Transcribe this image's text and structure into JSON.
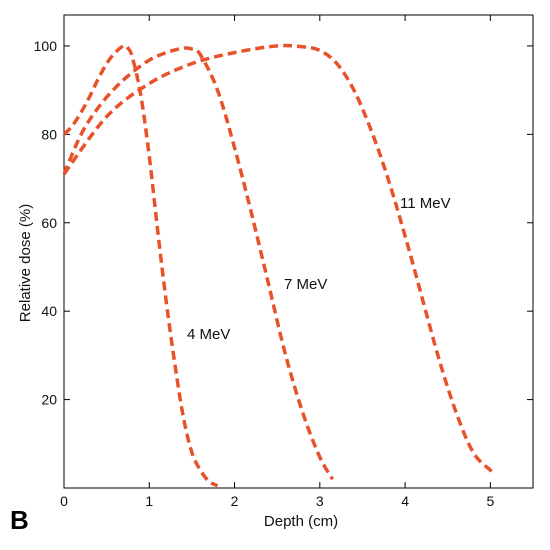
{
  "panel_letter": "B",
  "chart_data": {
    "type": "line",
    "xlabel": "Depth (cm)",
    "ylabel": "Relative dose (%)",
    "xlim": [
      0,
      5.5
    ],
    "ylim": [
      0,
      107
    ],
    "xticks": [
      0,
      1,
      2,
      3,
      4,
      5
    ],
    "yticks": [
      20,
      40,
      60,
      80,
      100
    ],
    "grid": false,
    "line_style": "dashed",
    "line_color": "#e8522a",
    "series": [
      {
        "name": "4 MeV",
        "x": [
          0.0,
          0.1,
          0.2,
          0.3,
          0.4,
          0.5,
          0.6,
          0.7,
          0.75,
          0.8,
          0.9,
          1.0,
          1.1,
          1.2,
          1.3,
          1.4,
          1.5,
          1.6,
          1.7,
          1.8
        ],
        "y": [
          80.0,
          82.0,
          85.0,
          88.5,
          92.5,
          96.0,
          98.5,
          100.0,
          99.5,
          97.5,
          89.0,
          75.0,
          58.0,
          42.0,
          28.0,
          16.0,
          8.0,
          4.0,
          1.5,
          0.5
        ]
      },
      {
        "name": "7 MeV",
        "x": [
          0.0,
          0.2,
          0.4,
          0.6,
          0.8,
          1.0,
          1.2,
          1.4,
          1.5,
          1.6,
          1.8,
          2.0,
          2.2,
          2.4,
          2.6,
          2.8,
          3.0,
          3.15
        ],
        "y": [
          71.0,
          80.0,
          86.0,
          90.5,
          94.0,
          96.8,
          98.5,
          99.5,
          99.3,
          98.0,
          90.0,
          77.0,
          62.0,
          46.0,
          30.0,
          17.0,
          7.0,
          2.0
        ]
      },
      {
        "name": "11 MeV",
        "x": [
          0.0,
          0.5,
          1.0,
          1.5,
          2.0,
          2.5,
          2.8,
          3.0,
          3.2,
          3.4,
          3.6,
          3.8,
          4.0,
          4.2,
          4.4,
          4.6,
          4.8,
          5.0,
          5.05
        ],
        "y": [
          71.0,
          84.0,
          91.5,
          96.0,
          98.5,
          100.0,
          99.8,
          99.0,
          96.0,
          90.0,
          81.0,
          70.0,
          57.0,
          43.0,
          29.0,
          17.0,
          8.0,
          4.0,
          3.0
        ]
      }
    ],
    "annotations": [
      {
        "text": "4 MeV",
        "series": "4 MeV"
      },
      {
        "text": "7 MeV",
        "series": "7 MeV"
      },
      {
        "text": "11 MeV",
        "series": "11 MeV"
      }
    ]
  }
}
